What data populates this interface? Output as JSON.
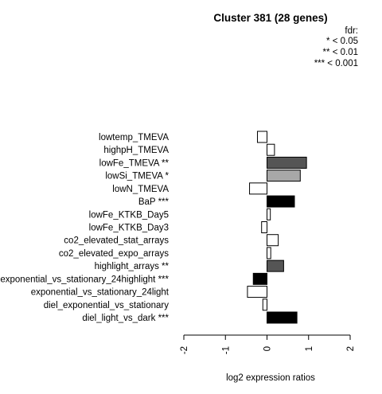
{
  "chart_data": {
    "type": "bar",
    "orientation": "horizontal",
    "title": "Cluster 381 (28 genes)",
    "xlabel": "log2 expression ratios",
    "xlim": [
      -2,
      2
    ],
    "xticks": [
      "-2",
      "-1",
      "0",
      "1",
      "2"
    ],
    "legend": {
      "title": "fdr:",
      "entries": [
        "* < 0.05",
        "** < 0.01",
        "*** < 0.001"
      ],
      "position": "top-right"
    },
    "categories": [
      "lowtemp_TMEVA",
      "highpH_TMEVA",
      "lowFe_TMEVA **",
      "lowSi_TMEVA *",
      "lowN_TMEVA",
      "BaP ***",
      "lowFe_KTKB_Day5",
      "lowFe_KTKB_Day3",
      "co2_elevated_stat_arrays",
      "co2_elevated_expo_arrays",
      "highlight_arrays **",
      "exponential_vs_stationary_24highlight ***",
      "exponential_vs_stationary_24light",
      "diel_exponential_vs_stationary",
      "diel_light_vs_dark ***"
    ],
    "values": [
      -0.23,
      0.18,
      0.95,
      0.8,
      -0.42,
      0.66,
      0.08,
      -0.13,
      0.27,
      0.09,
      0.4,
      -0.33,
      -0.47,
      -0.1,
      0.72
    ],
    "colors": [
      "#ffffff",
      "#ffffff",
      "#555555",
      "#a8a8a8",
      "#ffffff",
      "#000000",
      "#ffffff",
      "#ffffff",
      "#ffffff",
      "#ffffff",
      "#555555",
      "#000000",
      "#ffffff",
      "#ffffff",
      "#000000"
    ],
    "grid": false
  }
}
